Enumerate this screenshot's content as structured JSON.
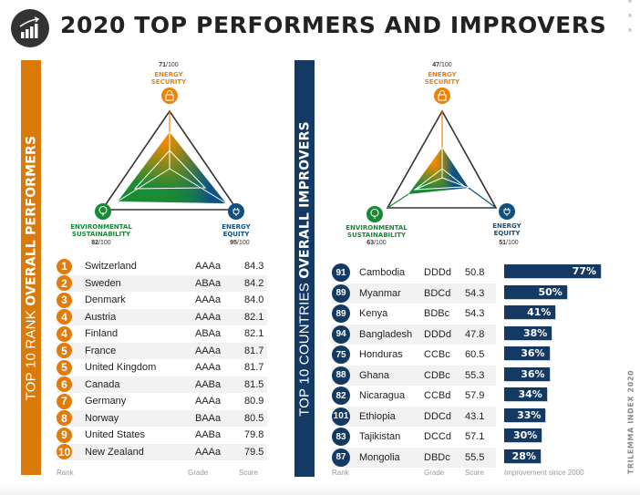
{
  "header": {
    "title": "2020 TOP PERFORMERS AND IMPROVERS",
    "icon": "growth-chart-icon"
  },
  "left_panel": {
    "band_label_light": "TOP 10 RANK ",
    "band_label_bold": "OVERALL PERFORMERS",
    "radar": {
      "energy_security": {
        "label_line1": "ENERGY",
        "label_line2": "SECURITY",
        "score": "71",
        "max": "/100",
        "icon": "lock-icon"
      },
      "environmental_sustainability": {
        "label_line1": "ENVIRONMENTAL",
        "label_line2": "SUSTAINABILITY",
        "score": "82",
        "max": "/100",
        "icon": "tree-icon"
      },
      "energy_equity": {
        "label_line1": "ENERGY",
        "label_line2": "EQUITY",
        "score": "95",
        "max": "/100",
        "icon": "plug-icon"
      }
    },
    "rows": [
      {
        "rank": "1",
        "country": "Switzerland",
        "grade": "AAAa",
        "score": "84.3"
      },
      {
        "rank": "2",
        "country": "Sweden",
        "grade": "ABAa",
        "score": "84.2"
      },
      {
        "rank": "3",
        "country": "Denmark",
        "grade": "AAAa",
        "score": "84.0"
      },
      {
        "rank": "4",
        "country": "Austria",
        "grade": "AAAa",
        "score": "82.1"
      },
      {
        "rank": "4",
        "country": "Finland",
        "grade": "ABAa",
        "score": "82.1"
      },
      {
        "rank": "5",
        "country": "France",
        "grade": "AAAa",
        "score": "81.7"
      },
      {
        "rank": "5",
        "country": "United Kingdom",
        "grade": "AAAa",
        "score": "81.7"
      },
      {
        "rank": "6",
        "country": "Canada",
        "grade": "AABa",
        "score": "81.5"
      },
      {
        "rank": "7",
        "country": "Germany",
        "grade": "AAAa",
        "score": "80.9"
      },
      {
        "rank": "8",
        "country": "Norway",
        "grade": "BAAa",
        "score": "80.5"
      },
      {
        "rank": "9",
        "country": "United States",
        "grade": "AABa",
        "score": "79.8"
      },
      {
        "rank": "10",
        "country": "New Zealand",
        "grade": "AAAa",
        "score": "79.5"
      }
    ],
    "footer": {
      "rank": "Rank",
      "grade": "Grade",
      "score": "Score"
    }
  },
  "right_panel": {
    "band_label_light": "TOP 10 COUNTRIES ",
    "band_label_bold": "OVERALL IMPROVERS",
    "radar": {
      "energy_security": {
        "label_line1": "ENERGY",
        "label_line2": "SECURITY",
        "score": "47",
        "max": "/100",
        "icon": "lock-icon"
      },
      "environmental_sustainability": {
        "label_line1": "ENVIRONMENTAL",
        "label_line2": "SUSTAINABILITY",
        "score": "63",
        "max": "/100",
        "icon": "tree-icon"
      },
      "energy_equity": {
        "label_line1": "ENERGY",
        "label_line2": "EQUITY",
        "score": "51",
        "max": "/100",
        "icon": "plug-icon"
      }
    },
    "rows": [
      {
        "rank": "91",
        "country": "Cambodia",
        "grade": "DDDd",
        "score": "50.8",
        "improvement": "77%",
        "improvement_value": 77
      },
      {
        "rank": "89",
        "country": "Myanmar",
        "grade": "BDCd",
        "score": "54.3",
        "improvement": "50%",
        "improvement_value": 50
      },
      {
        "rank": "89",
        "country": "Kenya",
        "grade": "BDBc",
        "score": "54.3",
        "improvement": "41%",
        "improvement_value": 41
      },
      {
        "rank": "94",
        "country": "Bangladesh",
        "grade": "DDDd",
        "score": "47.8",
        "improvement": "38%",
        "improvement_value": 38
      },
      {
        "rank": "75",
        "country": "Honduras",
        "grade": "CCBc",
        "score": "60.5",
        "improvement": "36%",
        "improvement_value": 36
      },
      {
        "rank": "88",
        "country": "Ghana",
        "grade": "CDBc",
        "score": "55.3",
        "improvement": "36%",
        "improvement_value": 36
      },
      {
        "rank": "82",
        "country": "Nicaragua",
        "grade": "CCBd",
        "score": "57.9",
        "improvement": "34%",
        "improvement_value": 34
      },
      {
        "rank": "101",
        "country": "Ethiopia",
        "grade": "DDCd",
        "score": "43.1",
        "improvement": "33%",
        "improvement_value": 33
      },
      {
        "rank": "83",
        "country": "Tajikistan",
        "grade": "DCCd",
        "score": "57.1",
        "improvement": "30%",
        "improvement_value": 30
      },
      {
        "rank": "87",
        "country": "Mongolia",
        "grade": "DBDc",
        "score": "55.5",
        "improvement": "28%",
        "improvement_value": 28
      }
    ],
    "footer": {
      "rank": "Rank",
      "grade": "Grade",
      "score": "Score",
      "improvement": "Improvement since 2000"
    }
  },
  "side_label": "TRILEMMA INDEX 2020",
  "colors": {
    "orange": "#e07b0c",
    "navy": "#143a63",
    "green": "#188a35",
    "blue": "#11507f"
  }
}
